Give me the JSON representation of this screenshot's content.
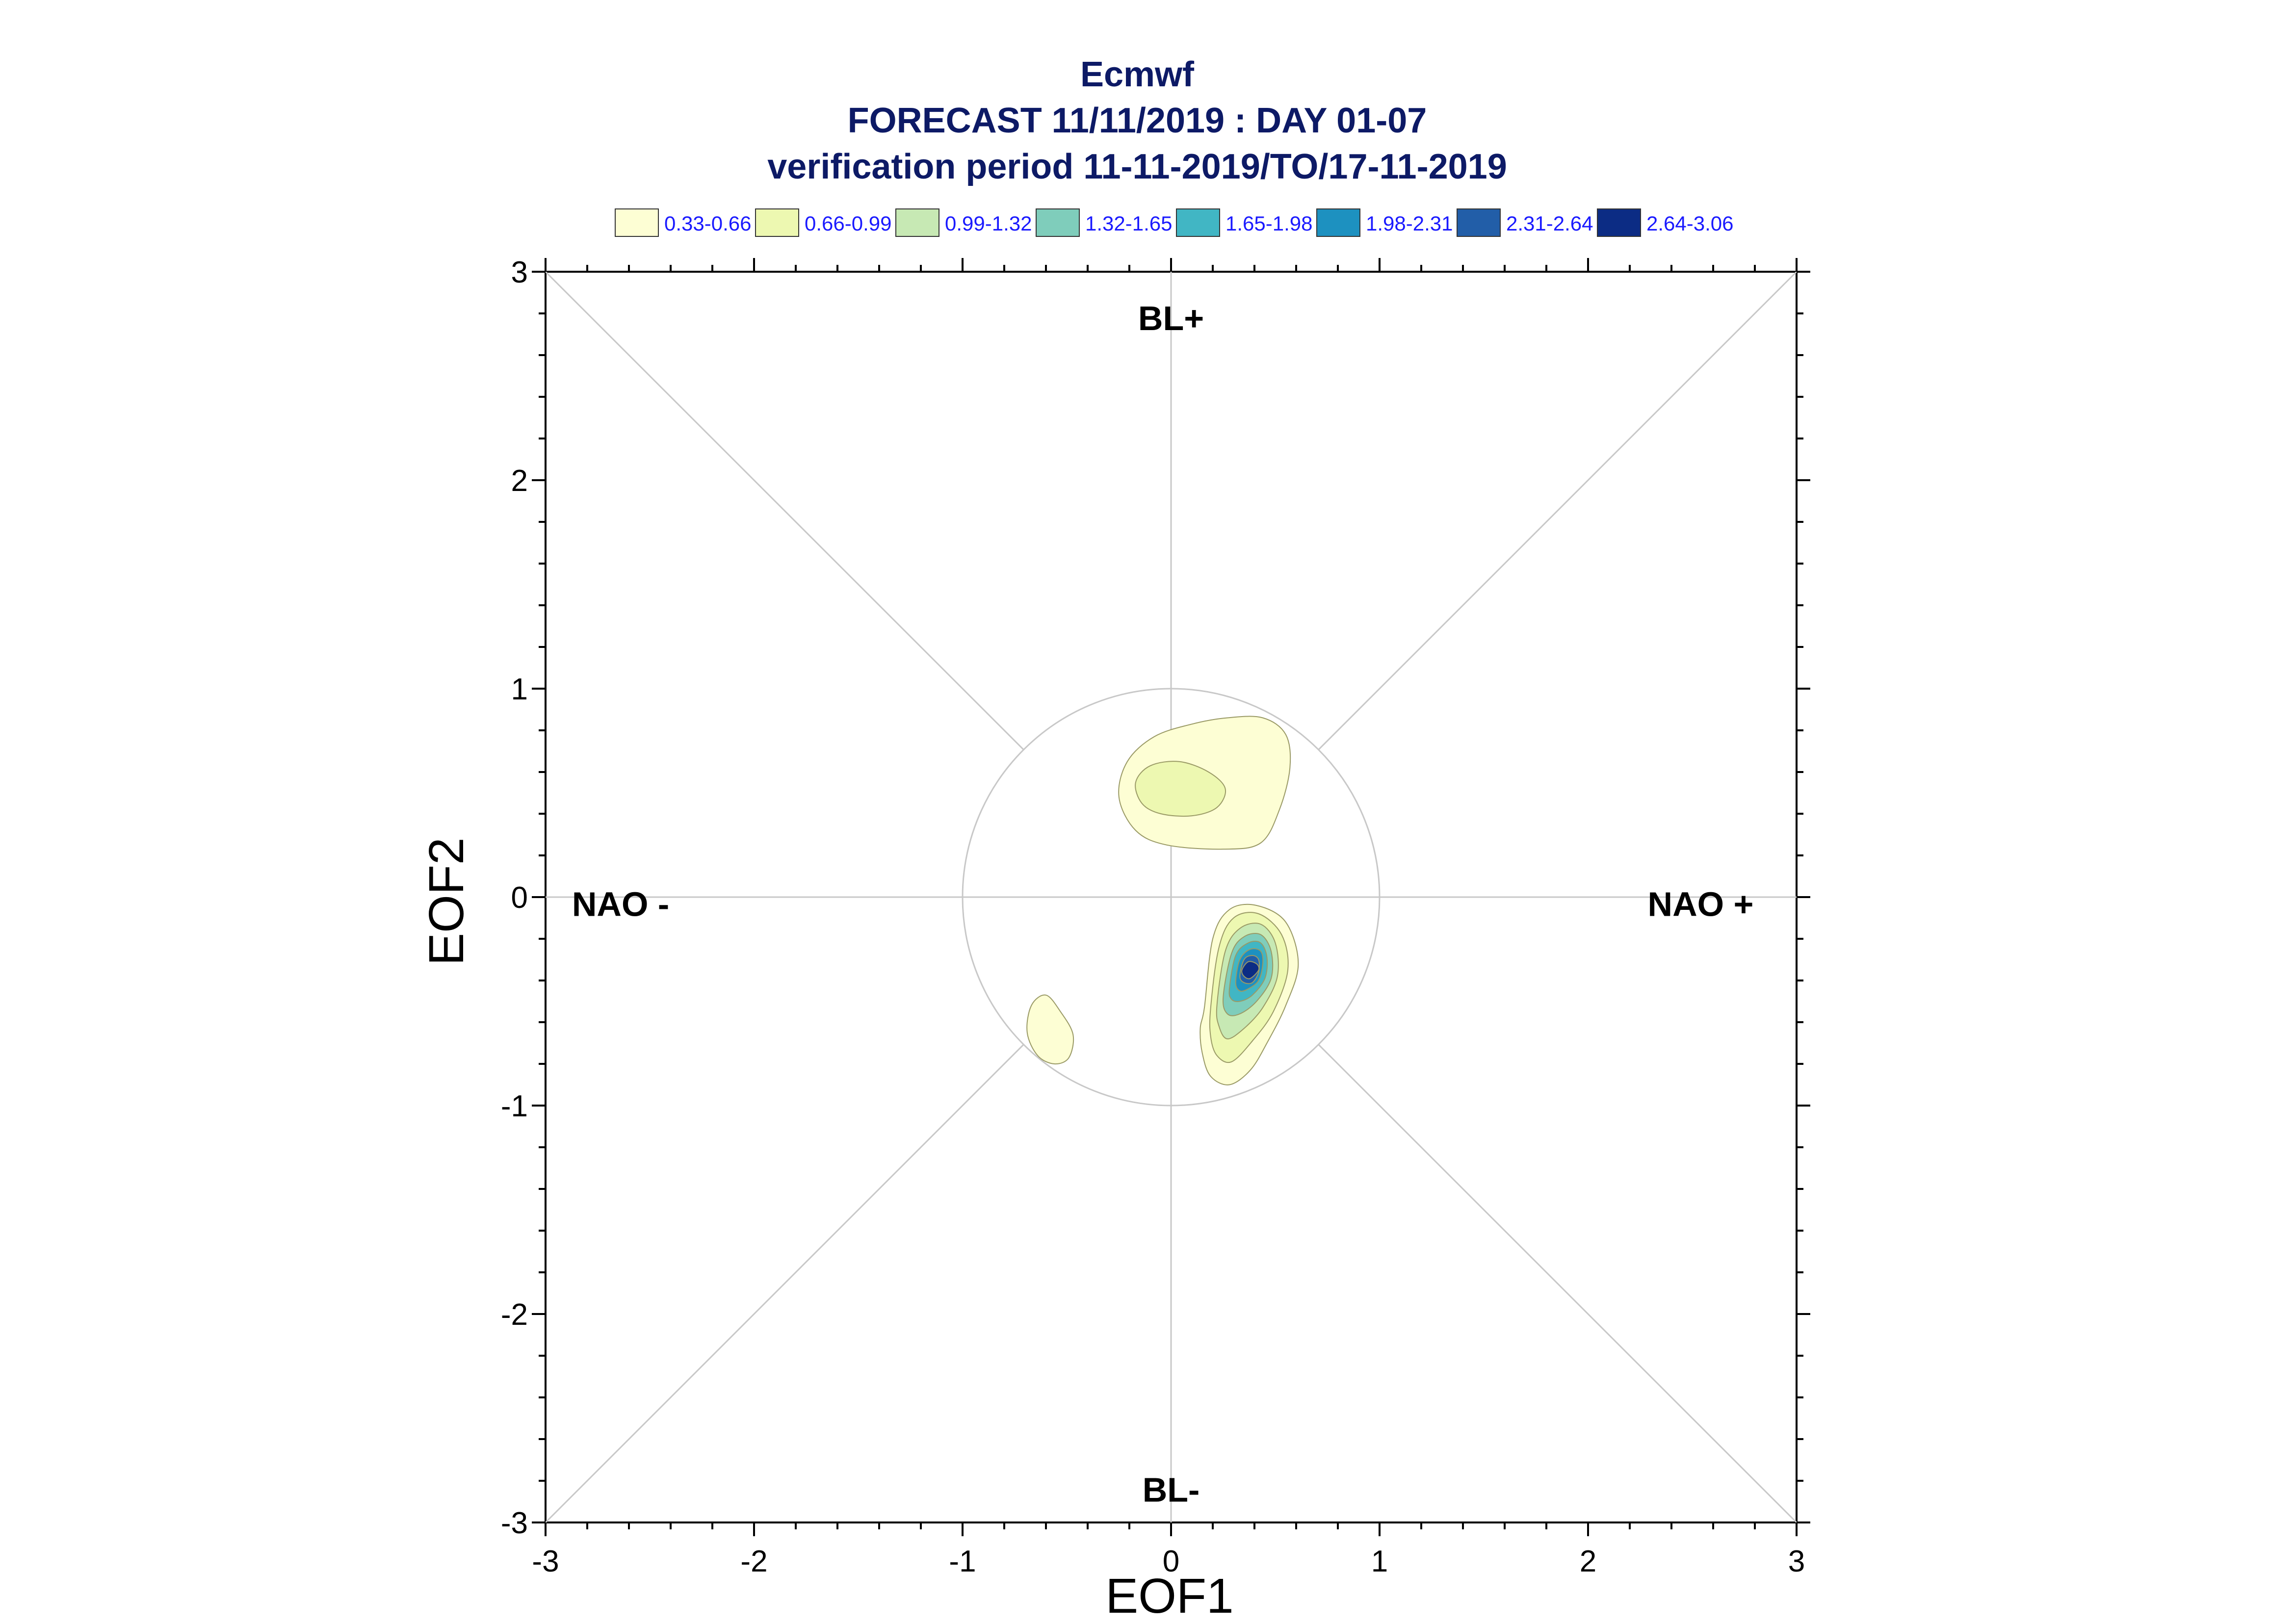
{
  "chart_data": {
    "type": "contour",
    "title_lines": [
      "Ecmwf",
      "FORECAST 11/11/2019 : DAY 01-07",
      "verification period 11-11-2019/TO/17-11-2019"
    ],
    "xlabel": "EOF1",
    "ylabel": "EOF2",
    "xlim": [
      -3,
      3
    ],
    "ylim": [
      -3,
      3
    ],
    "x_ticks": [
      "-3",
      "-2",
      "-1",
      "0",
      "1",
      "2",
      "3"
    ],
    "y_ticks": [
      "3",
      "2",
      "1",
      "0",
      "-1",
      "-2",
      "-3"
    ],
    "grid": false,
    "reference_circle_radius": 1,
    "legend": [
      {
        "label": "0.33-0.66",
        "color": "#fdfed4"
      },
      {
        "label": "0.66-0.99",
        "color": "#edf8b1"
      },
      {
        "label": "0.99-1.32",
        "color": "#c7e9b4"
      },
      {
        "label": "1.32-1.65",
        "color": "#7fcdbb"
      },
      {
        "label": "1.65-1.98",
        "color": "#41b6c4"
      },
      {
        "label": "1.98-2.31",
        "color": "#1d91c0"
      },
      {
        "label": "2.31-2.64",
        "color": "#225ea8"
      },
      {
        "label": "2.64-3.06",
        "color": "#0c2c84"
      }
    ],
    "regimes": [
      {
        "label": "BL+",
        "x": 0,
        "y": 2.72
      },
      {
        "label": "BL-",
        "x": 0,
        "y": -2.9
      },
      {
        "label": "NAO -",
        "x": -2.64,
        "y": -0.09
      },
      {
        "label": "NAO +",
        "x": 2.54,
        "y": -0.09
      }
    ],
    "density_regions": [
      {
        "level": 0,
        "points": [
          [
            -0.02,
            0.25
          ],
          [
            0.25,
            0.23
          ],
          [
            0.43,
            0.26
          ],
          [
            0.52,
            0.42
          ],
          [
            0.57,
            0.62
          ],
          [
            0.55,
            0.78
          ],
          [
            0.44,
            0.86
          ],
          [
            0.27,
            0.86
          ],
          [
            0.1,
            0.83
          ],
          [
            -0.08,
            0.77
          ],
          [
            -0.21,
            0.65
          ],
          [
            -0.25,
            0.48
          ],
          [
            -0.17,
            0.32
          ]
        ]
      },
      {
        "level": 1,
        "points": [
          [
            -0.05,
            0.4
          ],
          [
            0.1,
            0.39
          ],
          [
            0.22,
            0.43
          ],
          [
            0.26,
            0.52
          ],
          [
            0.18,
            0.6
          ],
          [
            0.04,
            0.65
          ],
          [
            -0.1,
            0.63
          ],
          [
            -0.17,
            0.55
          ],
          [
            -0.14,
            0.45
          ]
        ]
      },
      {
        "level": 0,
        "points": [
          [
            -0.6,
            -0.47
          ],
          [
            -0.53,
            -0.55
          ],
          [
            -0.47,
            -0.66
          ],
          [
            -0.49,
            -0.77
          ],
          [
            -0.56,
            -0.8
          ],
          [
            -0.64,
            -0.76
          ],
          [
            -0.69,
            -0.65
          ],
          [
            -0.67,
            -0.52
          ]
        ]
      },
      {
        "level": 0,
        "points": [
          [
            0.16,
            -0.53
          ],
          [
            0.2,
            -0.2
          ],
          [
            0.28,
            -0.06
          ],
          [
            0.41,
            -0.04
          ],
          [
            0.55,
            -0.12
          ],
          [
            0.61,
            -0.32
          ],
          [
            0.55,
            -0.52
          ],
          [
            0.46,
            -0.7
          ],
          [
            0.38,
            -0.83
          ],
          [
            0.28,
            -0.9
          ],
          [
            0.19,
            -0.86
          ],
          [
            0.15,
            -0.75
          ],
          [
            0.14,
            -0.63
          ]
        ]
      },
      {
        "level": 1,
        "points": [
          [
            0.19,
            -0.53
          ],
          [
            0.23,
            -0.24
          ],
          [
            0.3,
            -0.1
          ],
          [
            0.42,
            -0.08
          ],
          [
            0.53,
            -0.18
          ],
          [
            0.56,
            -0.35
          ],
          [
            0.49,
            -0.55
          ],
          [
            0.39,
            -0.69
          ],
          [
            0.29,
            -0.79
          ],
          [
            0.22,
            -0.76
          ],
          [
            0.19,
            -0.67
          ]
        ]
      },
      {
        "level": 2,
        "points": [
          [
            0.22,
            -0.52
          ],
          [
            0.26,
            -0.26
          ],
          [
            0.33,
            -0.15
          ],
          [
            0.43,
            -0.13
          ],
          [
            0.5,
            -0.22
          ],
          [
            0.51,
            -0.38
          ],
          [
            0.44,
            -0.53
          ],
          [
            0.35,
            -0.63
          ],
          [
            0.27,
            -0.68
          ],
          [
            0.23,
            -0.62
          ]
        ]
      },
      {
        "level": 3,
        "points": [
          [
            0.25,
            -0.48
          ],
          [
            0.29,
            -0.27
          ],
          [
            0.35,
            -0.19
          ],
          [
            0.43,
            -0.18
          ],
          [
            0.48,
            -0.26
          ],
          [
            0.48,
            -0.39
          ],
          [
            0.41,
            -0.5
          ],
          [
            0.33,
            -0.56
          ],
          [
            0.27,
            -0.56
          ]
        ]
      },
      {
        "level": 4,
        "points": [
          [
            0.28,
            -0.44
          ],
          [
            0.31,
            -0.28
          ],
          [
            0.37,
            -0.22
          ],
          [
            0.43,
            -0.22
          ],
          [
            0.46,
            -0.29
          ],
          [
            0.45,
            -0.39
          ],
          [
            0.39,
            -0.47
          ],
          [
            0.33,
            -0.5
          ],
          [
            0.29,
            -0.49
          ]
        ]
      },
      {
        "level": 5,
        "points": [
          [
            0.31,
            -0.41
          ],
          [
            0.33,
            -0.3
          ],
          [
            0.38,
            -0.25
          ],
          [
            0.43,
            -0.26
          ],
          [
            0.44,
            -0.32
          ],
          [
            0.42,
            -0.4
          ],
          [
            0.37,
            -0.44
          ],
          [
            0.33,
            -0.45
          ]
        ]
      },
      {
        "level": 6,
        "points": [
          [
            0.33,
            -0.38
          ],
          [
            0.35,
            -0.3
          ],
          [
            0.39,
            -0.28
          ],
          [
            0.42,
            -0.3
          ],
          [
            0.42,
            -0.36
          ],
          [
            0.39,
            -0.41
          ],
          [
            0.35,
            -0.41
          ]
        ]
      },
      {
        "level": 7,
        "points": [
          [
            0.34,
            -0.35
          ],
          [
            0.37,
            -0.31
          ],
          [
            0.41,
            -0.32
          ],
          [
            0.42,
            -0.35
          ],
          [
            0.38,
            -0.39
          ],
          [
            0.35,
            -0.38
          ]
        ]
      }
    ]
  }
}
